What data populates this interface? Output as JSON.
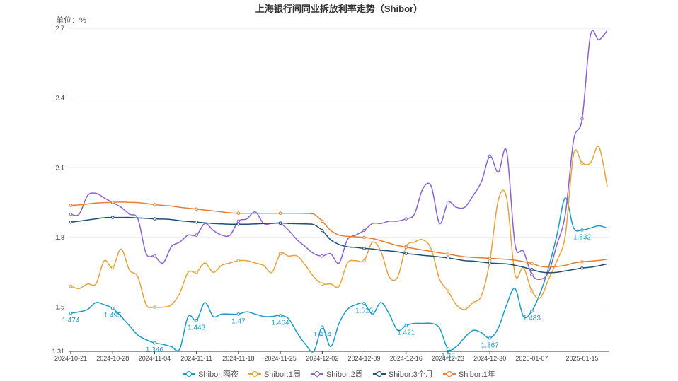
{
  "chart_data": {
    "type": "line",
    "title": "上海银行间同业拆放利率走势（Shibor）",
    "unit_label": "单位：%",
    "ylim": [
      1.31,
      2.7
    ],
    "y_ticks": [
      "1.31",
      "1.5",
      "1.8",
      "2.1",
      "2.4",
      "2.7"
    ],
    "x_tick_labels": [
      "2024-10-21",
      "2024-10-28",
      "2024-11-04",
      "2024-11-11",
      "2024-11-18",
      "2024-11-25",
      "2024-12-02",
      "2024-12-09",
      "2024-12-16",
      "2024-12-23",
      "2024-12-30",
      "2025-01-07",
      "2025-01-15"
    ],
    "grid": true,
    "legend_position": "bottom",
    "x": [
      "2024-10-21",
      "2024-10-22",
      "2024-10-23",
      "2024-10-24",
      "2024-10-25",
      "2024-10-28",
      "2024-10-29",
      "2024-10-30",
      "2024-10-31",
      "2024-11-01",
      "2024-11-04",
      "2024-11-05",
      "2024-11-06",
      "2024-11-07",
      "2024-11-08",
      "2024-11-11",
      "2024-11-12",
      "2024-11-13",
      "2024-11-14",
      "2024-11-15",
      "2024-11-18",
      "2024-11-19",
      "2024-11-20",
      "2024-11-21",
      "2024-11-22",
      "2024-11-25",
      "2024-11-26",
      "2024-11-27",
      "2024-11-28",
      "2024-11-29",
      "2024-12-02",
      "2024-12-03",
      "2024-12-04",
      "2024-12-05",
      "2024-12-06",
      "2024-12-09",
      "2024-12-10",
      "2024-12-11",
      "2024-12-12",
      "2024-12-13",
      "2024-12-16",
      "2024-12-17",
      "2024-12-18",
      "2024-12-19",
      "2024-12-20",
      "2024-12-23",
      "2024-12-24",
      "2024-12-25",
      "2024-12-26",
      "2024-12-27",
      "2024-12-30",
      "2024-12-31",
      "2025-01-02",
      "2025-01-03",
      "2025-01-06",
      "2025-01-07",
      "2025-01-08",
      "2025-01-09",
      "2025-01-10",
      "2025-01-13",
      "2025-01-14",
      "2025-01-15",
      "2025-01-16",
      "2025-01-17",
      "2025-01-20"
    ],
    "series": [
      {
        "name": "Shibor:隔夜",
        "color": "#1b9bc7",
        "values": [
          1.474,
          1.48,
          1.49,
          1.52,
          1.51,
          1.495,
          1.46,
          1.42,
          1.38,
          1.36,
          1.346,
          1.34,
          1.33,
          1.32,
          1.46,
          1.443,
          1.52,
          1.46,
          1.47,
          1.47,
          1.47,
          1.48,
          1.47,
          1.46,
          1.46,
          1.464,
          1.45,
          1.39,
          1.34,
          1.31,
          1.414,
          1.33,
          1.43,
          1.49,
          1.51,
          1.516,
          1.47,
          1.52,
          1.47,
          1.4,
          1.421,
          1.43,
          1.43,
          1.43,
          1.41,
          1.32,
          1.33,
          1.37,
          1.4,
          1.39,
          1.367,
          1.41,
          1.51,
          1.58,
          1.46,
          1.483,
          1.56,
          1.67,
          1.81,
          1.97,
          1.84,
          1.832,
          1.84,
          1.85,
          1.84
        ],
        "labels": {
          "0": "1.474",
          "5": "1.495",
          "10": "1.346",
          "15": "1.443",
          "20": "1.47",
          "25": "1.464",
          "30": "1.414",
          "35": "1.516",
          "40": "1.421",
          "45": "1.32",
          "50": "1.367",
          "55": "1.483",
          "61": "1.832"
        }
      },
      {
        "name": "Shibor:1周",
        "color": "#e5a33a",
        "values": [
          1.59,
          1.58,
          1.6,
          1.6,
          1.7,
          1.67,
          1.75,
          1.66,
          1.63,
          1.51,
          1.5,
          1.5,
          1.51,
          1.56,
          1.65,
          1.65,
          1.69,
          1.65,
          1.68,
          1.69,
          1.7,
          1.7,
          1.69,
          1.68,
          1.65,
          1.73,
          1.72,
          1.72,
          1.68,
          1.63,
          1.6,
          1.6,
          1.59,
          1.69,
          1.7,
          1.7,
          1.78,
          1.74,
          1.63,
          1.63,
          1.76,
          1.78,
          1.79,
          1.75,
          1.62,
          1.57,
          1.51,
          1.49,
          1.52,
          1.55,
          1.7,
          1.96,
          1.97,
          1.64,
          1.67,
          1.57,
          1.54,
          1.62,
          1.7,
          1.81,
          2.16,
          2.12,
          2.12,
          2.19,
          2.02
        ],
        "labels": {}
      },
      {
        "name": "Shibor:2周",
        "color": "#8a62d4",
        "values": [
          1.9,
          1.9,
          1.98,
          1.99,
          1.97,
          1.95,
          1.93,
          1.9,
          1.88,
          1.73,
          1.72,
          1.69,
          1.76,
          1.78,
          1.81,
          1.81,
          1.86,
          1.83,
          1.81,
          1.81,
          1.87,
          1.88,
          1.91,
          1.86,
          1.86,
          1.86,
          1.83,
          1.79,
          1.76,
          1.73,
          1.72,
          1.73,
          1.69,
          1.79,
          1.81,
          1.83,
          1.86,
          1.86,
          1.87,
          1.87,
          1.88,
          1.9,
          2.01,
          2.02,
          1.86,
          1.95,
          1.93,
          1.93,
          1.98,
          2.04,
          2.15,
          2.08,
          2.17,
          1.77,
          1.74,
          1.64,
          1.62,
          1.65,
          1.77,
          1.9,
          2.22,
          2.31,
          2.67,
          2.65,
          2.69
        ],
        "labels": {}
      },
      {
        "name": "Shibor:3个月",
        "color": "#1f4e79",
        "values": [
          1.866,
          1.87,
          1.875,
          1.88,
          1.885,
          1.886,
          1.886,
          1.886,
          1.884,
          1.882,
          1.88,
          1.879,
          1.877,
          1.872,
          1.869,
          1.866,
          1.863,
          1.86,
          1.858,
          1.857,
          1.857,
          1.857,
          1.858,
          1.86,
          1.861,
          1.862,
          1.86,
          1.859,
          1.858,
          1.855,
          1.83,
          1.79,
          1.77,
          1.76,
          1.757,
          1.753,
          1.75,
          1.745,
          1.742,
          1.738,
          1.731,
          1.727,
          1.723,
          1.72,
          1.716,
          1.712,
          1.706,
          1.7,
          1.698,
          1.694,
          1.69,
          1.688,
          1.686,
          1.68,
          1.672,
          1.662,
          1.652,
          1.648,
          1.65,
          1.656,
          1.662,
          1.668,
          1.672,
          1.678,
          1.686
        ],
        "labels": {}
      },
      {
        "name": "Shibor:1年",
        "color": "#ea7e2e",
        "values": [
          1.938,
          1.94,
          1.944,
          1.948,
          1.95,
          1.951,
          1.952,
          1.951,
          1.95,
          1.946,
          1.941,
          1.938,
          1.935,
          1.93,
          1.926,
          1.922,
          1.918,
          1.914,
          1.91,
          1.906,
          1.904,
          1.904,
          1.904,
          1.904,
          1.904,
          1.904,
          1.904,
          1.904,
          1.903,
          1.9,
          1.87,
          1.83,
          1.81,
          1.805,
          1.803,
          1.8,
          1.795,
          1.786,
          1.775,
          1.765,
          1.758,
          1.752,
          1.746,
          1.74,
          1.734,
          1.728,
          1.722,
          1.717,
          1.714,
          1.712,
          1.71,
          1.708,
          1.706,
          1.702,
          1.696,
          1.688,
          1.676,
          1.672,
          1.675,
          1.68,
          1.69,
          1.695,
          1.698,
          1.701,
          1.706
        ],
        "labels": {}
      }
    ]
  }
}
